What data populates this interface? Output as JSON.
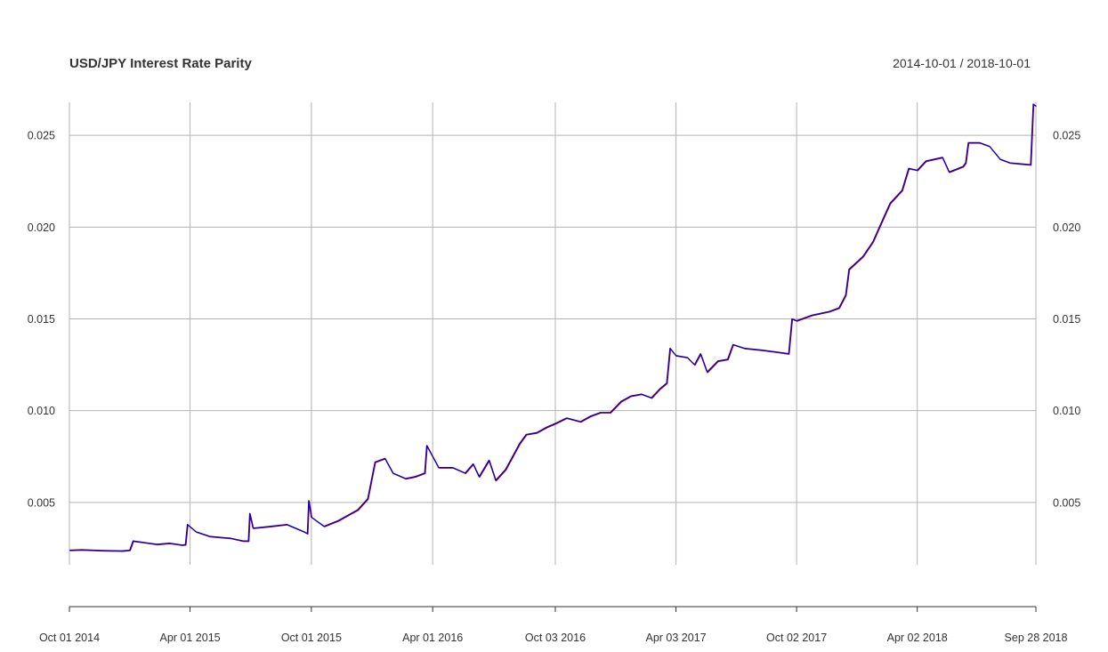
{
  "chart_data": {
    "type": "line",
    "title": "USD/JPY Interest Rate Parity",
    "date_range": "2014-10-01 / 2018-10-01",
    "x_ticks": [
      "Oct 01 2014",
      "Apr 01 2015",
      "Oct 01 2015",
      "Apr 01 2016",
      "Oct 03 2016",
      "Apr 03 2017",
      "Oct 02 2017",
      "Apr 02 2018",
      "Sep 28 2018"
    ],
    "y_ticks": [
      "0.005",
      "0.010",
      "0.015",
      "0.020",
      "0.025"
    ],
    "ylim": [
      0.0016,
      0.0268
    ],
    "grid": true,
    "series": [
      {
        "color_primary": "#0000cc",
        "color_secondary": "#cc0000",
        "points": [
          [
            "Oct 01 2014",
            0.0024
          ],
          [
            "Oct 20 2014",
            0.00242
          ],
          [
            "Nov 20 2014",
            0.00238
          ],
          [
            "Dec 20 2014",
            0.00236
          ],
          [
            "Dec 31 2014",
            0.0024
          ],
          [
            "Jan 05 2015",
            0.0029
          ],
          [
            "Jan 25 2015",
            0.0028
          ],
          [
            "Feb 10 2015",
            0.00272
          ],
          [
            "Mar 01 2015",
            0.00278
          ],
          [
            "Mar 20 2015",
            0.00268
          ],
          [
            "Mar 25 2015",
            0.0027
          ],
          [
            "Mar 28 2015",
            0.0038
          ],
          [
            "Apr 10 2015",
            0.0034
          ],
          [
            "May 01 2015",
            0.00315
          ],
          [
            "Jun 01 2015",
            0.00305
          ],
          [
            "Jun 20 2015",
            0.0029
          ],
          [
            "Jun 28 2015",
            0.0029
          ],
          [
            "Jun 30 2015",
            0.0044
          ],
          [
            "Jul 05 2015",
            0.0036
          ],
          [
            "Aug 01 2015",
            0.0037
          ],
          [
            "Aug 25 2015",
            0.0038
          ],
          [
            "Sep 20 2015",
            0.0034
          ],
          [
            "Sep 25 2015",
            0.0033
          ],
          [
            "Sep 27 2015",
            0.0051
          ],
          [
            "Oct 01 2015",
            0.0042
          ],
          [
            "Oct 20 2015",
            0.0037
          ],
          [
            "Nov 10 2015",
            0.004
          ],
          [
            "Nov 25 2015",
            0.0043
          ],
          [
            "Dec 10 2015",
            0.0046
          ],
          [
            "Dec 25 2015",
            0.0052
          ],
          [
            "Jan 05 2016",
            0.0072
          ],
          [
            "Jan 20 2016",
            0.0074
          ],
          [
            "Feb 01 2016",
            0.0066
          ],
          [
            "Feb 20 2016",
            0.0063
          ],
          [
            "Mar 05 2016",
            0.0064
          ],
          [
            "Mar 20 2016",
            0.0066
          ],
          [
            "Mar 23 2016",
            0.0081
          ],
          [
            "Apr 01 2016",
            0.0075
          ],
          [
            "Apr 10 2016",
            0.0069
          ],
          [
            "May 01 2016",
            0.0069
          ],
          [
            "May 20 2016",
            0.0066
          ],
          [
            "Jun 01 2016",
            0.0071
          ],
          [
            "Jun 10 2016",
            0.0064
          ],
          [
            "Jun 25 2016",
            0.0073
          ],
          [
            "Jul 05 2016",
            0.0062
          ],
          [
            "Jul 20 2016",
            0.0068
          ],
          [
            "Aug 10 2016",
            0.0082
          ],
          [
            "Aug 20 2016",
            0.0087
          ],
          [
            "Sep 05 2016",
            0.0088
          ],
          [
            "Sep 20 2016",
            0.0091
          ],
          [
            "Oct 03 2016",
            0.0093
          ],
          [
            "Oct 20 2016",
            0.0096
          ],
          [
            "Nov 10 2016",
            0.0094
          ],
          [
            "Nov 25 2016",
            0.0097
          ],
          [
            "Dec 10 2016",
            0.0099
          ],
          [
            "Dec 25 2016",
            0.0099
          ],
          [
            "Jan 10 2017",
            0.0105
          ],
          [
            "Jan 25 2017",
            0.0108
          ],
          [
            "Feb 10 2017",
            0.0109
          ],
          [
            "Feb 25 2017",
            0.0107
          ],
          [
            "Mar 10 2017",
            0.0112
          ],
          [
            "Mar 20 2017",
            0.0115
          ],
          [
            "Mar 25 2017",
            0.0134
          ],
          [
            "Apr 03 2017",
            0.013
          ],
          [
            "Apr 20 2017",
            0.0129
          ],
          [
            "May 01 2017",
            0.0125
          ],
          [
            "May 10 2017",
            0.0131
          ],
          [
            "May 20 2017",
            0.0121
          ],
          [
            "Jun 05 2017",
            0.0127
          ],
          [
            "Jun 20 2017",
            0.0128
          ],
          [
            "Jun 28 2017",
            0.0136
          ],
          [
            "Jul 15 2017",
            0.0134
          ],
          [
            "Aug 10 2017",
            0.0133
          ],
          [
            "Sep 01 2017",
            0.0132
          ],
          [
            "Sep 20 2017",
            0.0131
          ],
          [
            "Sep 25 2017",
            0.015
          ],
          [
            "Oct 02 2017",
            0.0149
          ],
          [
            "Oct 25 2017",
            0.0152
          ],
          [
            "Nov 20 2017",
            0.0154
          ],
          [
            "Dec 05 2017",
            0.0156
          ],
          [
            "Dec 15 2017",
            0.0163
          ],
          [
            "Dec 20 2017",
            0.0177
          ],
          [
            "Jan 10 2018",
            0.0184
          ],
          [
            "Jan 25 2018",
            0.0192
          ],
          [
            "Feb 10 2018",
            0.0205
          ],
          [
            "Feb 20 2018",
            0.0213
          ],
          [
            "Mar 10 2018",
            0.022
          ],
          [
            "Mar 20 2018",
            0.0232
          ],
          [
            "Apr 02 2018",
            0.0231
          ],
          [
            "Apr 15 2018",
            0.0236
          ],
          [
            "May 10 2018",
            0.0238
          ],
          [
            "May 20 2018",
            0.023
          ],
          [
            "Jun 10 2018",
            0.0233
          ],
          [
            "Jun 14 2018",
            0.0235
          ],
          [
            "Jun 18 2018",
            0.0246
          ],
          [
            "Jul 05 2018",
            0.0246
          ],
          [
            "Jul 20 2018",
            0.0244
          ],
          [
            "Aug 05 2018",
            0.0237
          ],
          [
            "Aug 20 2018",
            0.0235
          ],
          [
            "Sep 20 2018",
            0.0234
          ],
          [
            "Sep 24 2018",
            0.0267
          ],
          [
            "Sep 28 2018",
            0.0266
          ]
        ]
      }
    ]
  }
}
